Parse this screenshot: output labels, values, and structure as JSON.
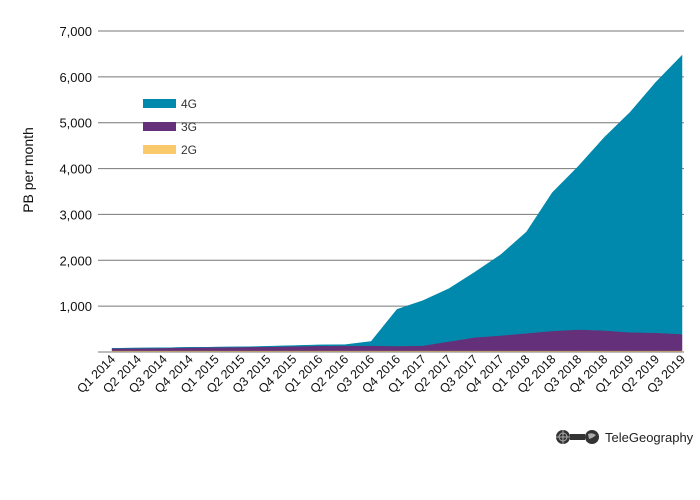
{
  "chart_data": {
    "type": "area",
    "stacked": true,
    "title": "",
    "xlabel": "",
    "ylabel": "PB per month",
    "ylim": [
      0,
      7000
    ],
    "yticks": [
      1000,
      2000,
      3000,
      4000,
      5000,
      6000,
      7000
    ],
    "ytick_labels": [
      "1,000",
      "2,000",
      "3,000",
      "4,000",
      "5,000",
      "6,000",
      "7,000"
    ],
    "grid": true,
    "legend_position": "upper-left",
    "categories": [
      "Q1 2014",
      "Q2 2014",
      "Q3 2014",
      "Q4 2014",
      "Q1 2015",
      "Q2 2015",
      "Q3 2015",
      "Q4 2015",
      "Q1 2016",
      "Q2 2016",
      "Q3 2016",
      "Q4 2016",
      "Q1 2017",
      "Q2 2017",
      "Q3 2017",
      "Q4 2017",
      "Q1 2018",
      "Q2 2018",
      "Q3 2018",
      "Q4 2018",
      "Q1 2019",
      "Q2 2019",
      "Q3 2019"
    ],
    "series": [
      {
        "name": "2G",
        "color": "#F9C96B",
        "values": [
          30,
          30,
          30,
          30,
          30,
          30,
          30,
          30,
          30,
          30,
          30,
          30,
          30,
          30,
          30,
          30,
          30,
          30,
          30,
          30,
          30,
          30,
          30
        ]
      },
      {
        "name": "3G",
        "color": "#633079",
        "values": [
          50,
          55,
          60,
          70,
          75,
          80,
          85,
          95,
          105,
          110,
          110,
          100,
          110,
          200,
          290,
          330,
          380,
          430,
          460,
          440,
          400,
          390,
          360
        ]
      },
      {
        "name": "4G",
        "color": "#0089AC",
        "values": [
          0,
          0,
          0,
          0,
          0,
          0,
          10,
          15,
          20,
          20,
          90,
          800,
          980,
          1150,
          1420,
          1760,
          2210,
          3020,
          3560,
          4210,
          4800,
          5470,
          6080
        ]
      }
    ],
    "stacked_totals": [
      80,
      85,
      90,
      100,
      105,
      110,
      125,
      140,
      155,
      160,
      230,
      930,
      1120,
      1380,
      1740,
      2120,
      2620,
      3480,
      4050,
      4680,
      5230,
      5890,
      6470
    ]
  },
  "legend": {
    "items": [
      {
        "label": "4G",
        "color": "#0089AC"
      },
      {
        "label": "3G",
        "color": "#633079"
      },
      {
        "label": "2G",
        "color": "#F9C96B"
      }
    ]
  },
  "axis": {
    "ylabel": "PB per month"
  },
  "branding": {
    "label": "TeleGeography",
    "icon": "telegeography-logo-icon"
  }
}
